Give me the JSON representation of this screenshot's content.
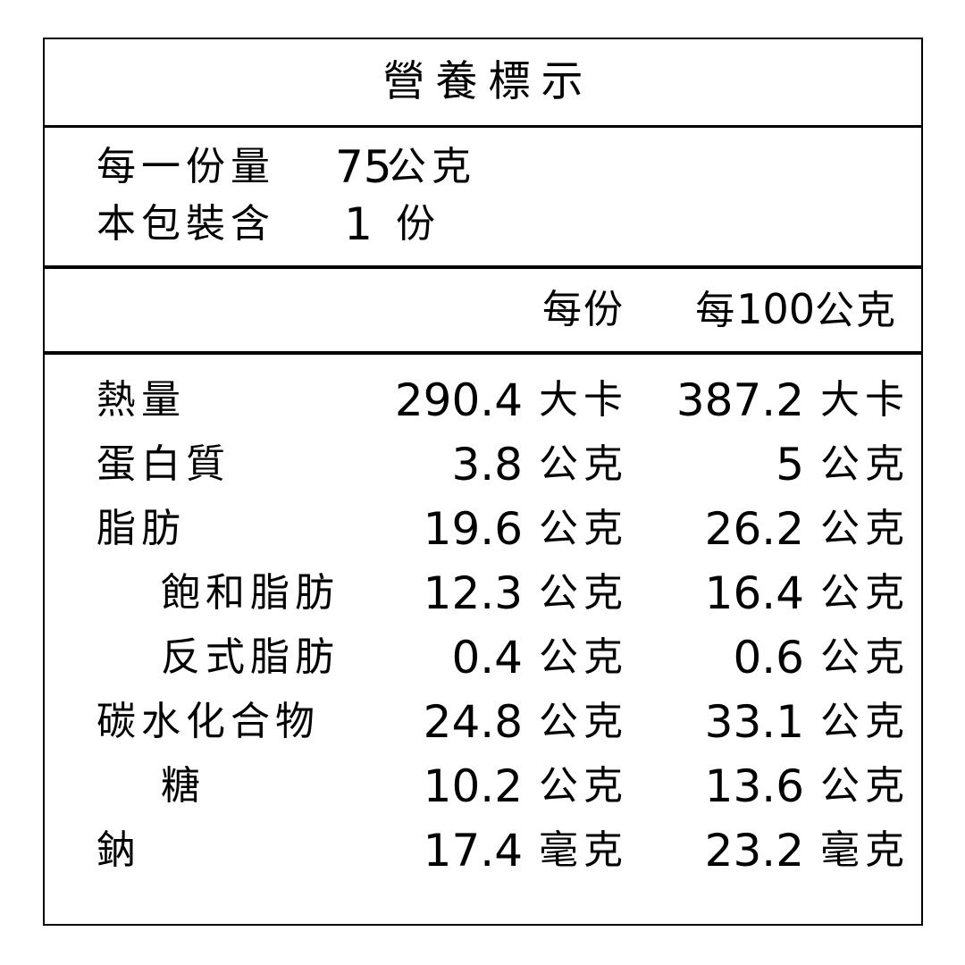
{
  "label": {
    "title": "營養標示",
    "serving_info": [
      {
        "label": "每一份量",
        "value": "75",
        "unit": "公克"
      },
      {
        "label": "本包裝含",
        "value": "1",
        "unit": "份"
      }
    ],
    "columns": {
      "per_serving": "每份",
      "per_100g": "每100公克"
    },
    "rows": [
      {
        "name": "熱量",
        "indent": false,
        "per_serving_value": "290.4",
        "per_serving_unit": "大卡",
        "per_100g_value": "387.2",
        "per_100g_unit": "大卡"
      },
      {
        "name": "蛋白質",
        "indent": false,
        "per_serving_value": "3.8",
        "per_serving_unit": "公克",
        "per_100g_value": "5",
        "per_100g_unit": "公克"
      },
      {
        "name": "脂肪",
        "indent": false,
        "per_serving_value": "19.6",
        "per_serving_unit": "公克",
        "per_100g_value": "26.2",
        "per_100g_unit": "公克"
      },
      {
        "name": "飽和脂肪",
        "indent": true,
        "per_serving_value": "12.3",
        "per_serving_unit": "公克",
        "per_100g_value": "16.4",
        "per_100g_unit": "公克"
      },
      {
        "name": "反式脂肪",
        "indent": true,
        "per_serving_value": "0.4",
        "per_serving_unit": "公克",
        "per_100g_value": "0.6",
        "per_100g_unit": "公克"
      },
      {
        "name": "碳水化合物",
        "indent": false,
        "per_serving_value": "24.8",
        "per_serving_unit": "公克",
        "per_100g_value": "33.1",
        "per_100g_unit": "公克"
      },
      {
        "name": "糖",
        "indent": true,
        "per_serving_value": "10.2",
        "per_serving_unit": "公克",
        "per_100g_value": "13.6",
        "per_100g_unit": "公克"
      },
      {
        "name": "鈉",
        "indent": false,
        "per_serving_value": "17.4",
        "per_serving_unit": "毫克",
        "per_100g_value": "23.2",
        "per_100g_unit": "毫克"
      }
    ],
    "text_color": "#000000",
    "background_color": "#ffffff"
  }
}
